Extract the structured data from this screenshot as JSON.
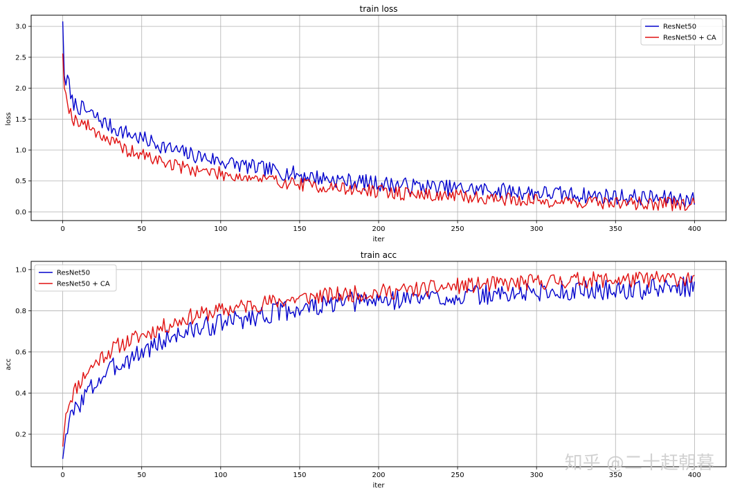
{
  "watermark": "知乎 @二十赶朝暮",
  "colors": {
    "resnet50": "#0000cc",
    "resnet50_ca": "#e01010",
    "grid": "#b0b0b0"
  },
  "chart_data": [
    {
      "type": "line",
      "title": "train loss",
      "xlabel": "iter",
      "ylabel": "loss",
      "xlim": [
        -20,
        420
      ],
      "ylim": [
        -0.14,
        3.18
      ],
      "xticks": [
        0,
        50,
        100,
        150,
        200,
        250,
        300,
        350,
        400
      ],
      "yticks": [
        0.0,
        0.5,
        1.0,
        1.5,
        2.0,
        2.5,
        3.0
      ],
      "ytick_labels": [
        "0.0",
        "0.5",
        "1.0",
        "1.5",
        "2.0",
        "2.5",
        "3.0"
      ],
      "grid": true,
      "legend_position": "top-right",
      "series": [
        {
          "name": "ResNet50",
          "color": "#0000cc",
          "keypoints": [
            [
              0,
              3.08
            ],
            [
              1,
              2.2
            ],
            [
              2,
              2.05
            ],
            [
              3,
              2.28
            ],
            [
              5,
              1.8
            ],
            [
              10,
              1.7
            ],
            [
              20,
              1.55
            ],
            [
              30,
              1.38
            ],
            [
              40,
              1.28
            ],
            [
              50,
              1.18
            ],
            [
              60,
              1.1
            ],
            [
              70,
              1.0
            ],
            [
              80,
              0.93
            ],
            [
              90,
              0.88
            ],
            [
              100,
              0.82
            ],
            [
              120,
              0.72
            ],
            [
              140,
              0.64
            ],
            [
              160,
              0.56
            ],
            [
              180,
              0.5
            ],
            [
              200,
              0.46
            ],
            [
              220,
              0.42
            ],
            [
              250,
              0.38
            ],
            [
              280,
              0.34
            ],
            [
              300,
              0.31
            ],
            [
              330,
              0.27
            ],
            [
              360,
              0.24
            ],
            [
              380,
              0.22
            ],
            [
              400,
              0.2
            ]
          ],
          "noise": 0.13,
          "seed": 7
        },
        {
          "name": "ResNet50 + CA",
          "color": "#e01010",
          "keypoints": [
            [
              0,
              2.56
            ],
            [
              1,
              2.0
            ],
            [
              2,
              1.92
            ],
            [
              4,
              1.7
            ],
            [
              6,
              1.5
            ],
            [
              10,
              1.48
            ],
            [
              20,
              1.32
            ],
            [
              30,
              1.15
            ],
            [
              40,
              1.0
            ],
            [
              50,
              0.92
            ],
            [
              60,
              0.84
            ],
            [
              70,
              0.76
            ],
            [
              80,
              0.7
            ],
            [
              90,
              0.66
            ],
            [
              100,
              0.62
            ],
            [
              120,
              0.55
            ],
            [
              140,
              0.48
            ],
            [
              160,
              0.42
            ],
            [
              180,
              0.37
            ],
            [
              200,
              0.33
            ],
            [
              220,
              0.29
            ],
            [
              250,
              0.25
            ],
            [
              280,
              0.21
            ],
            [
              300,
              0.18
            ],
            [
              330,
              0.16
            ],
            [
              360,
              0.14
            ],
            [
              380,
              0.13
            ],
            [
              400,
              0.12
            ]
          ],
          "noise": 0.11,
          "seed": 19
        }
      ]
    },
    {
      "type": "line",
      "title": "train acc",
      "xlabel": "iter",
      "ylabel": "acc",
      "xlim": [
        -20,
        420
      ],
      "ylim": [
        0.042,
        1.04
      ],
      "xticks": [
        0,
        50,
        100,
        150,
        200,
        250,
        300,
        350,
        400
      ],
      "yticks": [
        0.2,
        0.4,
        0.6,
        0.8,
        1.0
      ],
      "ytick_labels": [
        "0.2",
        "0.4",
        "0.6",
        "0.8",
        "1.0"
      ],
      "grid": true,
      "legend_position": "top-left",
      "series": [
        {
          "name": "ResNet50",
          "color": "#0000cc",
          "keypoints": [
            [
              0,
              0.08
            ],
            [
              2,
              0.2
            ],
            [
              4,
              0.26
            ],
            [
              8,
              0.32
            ],
            [
              15,
              0.4
            ],
            [
              25,
              0.48
            ],
            [
              35,
              0.54
            ],
            [
              50,
              0.6
            ],
            [
              60,
              0.64
            ],
            [
              70,
              0.68
            ],
            [
              80,
              0.7
            ],
            [
              100,
              0.74
            ],
            [
              120,
              0.77
            ],
            [
              140,
              0.8
            ],
            [
              160,
              0.82
            ],
            [
              180,
              0.84
            ],
            [
              200,
              0.85
            ],
            [
              220,
              0.86
            ],
            [
              250,
              0.87
            ],
            [
              280,
              0.88
            ],
            [
              300,
              0.89
            ],
            [
              330,
              0.9
            ],
            [
              360,
              0.9
            ],
            [
              400,
              0.92
            ]
          ],
          "noise": 0.05,
          "seed": 3
        },
        {
          "name": "ResNet50 + CA",
          "color": "#e01010",
          "keypoints": [
            [
              0,
              0.14
            ],
            [
              2,
              0.3
            ],
            [
              4,
              0.36
            ],
            [
              8,
              0.42
            ],
            [
              15,
              0.5
            ],
            [
              25,
              0.58
            ],
            [
              35,
              0.63
            ],
            [
              50,
              0.68
            ],
            [
              60,
              0.71
            ],
            [
              70,
              0.74
            ],
            [
              80,
              0.77
            ],
            [
              100,
              0.8
            ],
            [
              120,
              0.83
            ],
            [
              140,
              0.85
            ],
            [
              160,
              0.87
            ],
            [
              180,
              0.88
            ],
            [
              200,
              0.89
            ],
            [
              220,
              0.9
            ],
            [
              250,
              0.92
            ],
            [
              280,
              0.93
            ],
            [
              300,
              0.94
            ],
            [
              330,
              0.95
            ],
            [
              360,
              0.95
            ],
            [
              400,
              0.96
            ]
          ],
          "noise": 0.04,
          "seed": 11
        }
      ]
    }
  ]
}
